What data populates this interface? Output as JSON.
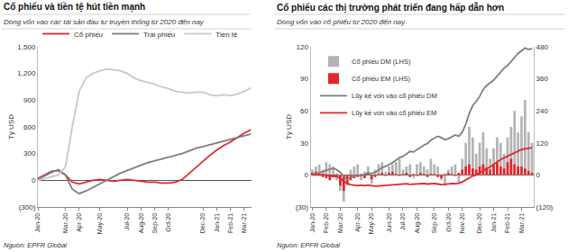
{
  "chart_data": [
    {
      "type": "line",
      "title": "Cổ phiếu và tiền tệ hút tiền mạnh",
      "subtitle": "Dòng vốn vào các tài sản đầu tư truyền thống từ 2020 đến nay",
      "y_label": "Tỷ USD",
      "annotations": [
        "Nguồn: EPFR Global"
      ],
      "categories": [
        "Jan-20",
        null,
        null,
        null,
        "Mar-20",
        null,
        "Apr-20",
        null,
        null,
        "May-20",
        null,
        null,
        null,
        "Jul-20",
        null,
        "Aug-20",
        null,
        "Sep-20",
        null,
        "Oct-20",
        null,
        null,
        null,
        null,
        "Dec-20",
        null,
        "Jan-21",
        null,
        "Feb-21",
        null,
        "Mar-21",
        null
      ],
      "series": [
        {
          "name": "Cổ phiếu",
          "color": "#e3262b",
          "values": [
            20,
            60,
            100,
            110,
            60,
            -20,
            -40,
            -20,
            0,
            10,
            0,
            -10,
            0,
            10,
            0,
            -10,
            -20,
            -20,
            -30,
            -30,
            -20,
            10,
            80,
            150,
            220,
            280,
            340,
            390,
            430,
            480,
            530,
            570
          ]
        },
        {
          "name": "Trái phiếu",
          "color": "#7f7f7f",
          "values": [
            10,
            50,
            90,
            120,
            60,
            -100,
            -150,
            -120,
            -80,
            -40,
            0,
            40,
            80,
            110,
            140,
            170,
            200,
            220,
            240,
            260,
            280,
            300,
            330,
            360,
            380,
            400,
            420,
            440,
            460,
            480,
            500,
            520
          ]
        },
        {
          "name": "Tiền tệ",
          "color": "#c8c8c8",
          "values": [
            0,
            20,
            40,
            60,
            150,
            600,
            1000,
            1150,
            1200,
            1230,
            1250,
            1240,
            1230,
            1200,
            1150,
            1120,
            1100,
            1080,
            1050,
            1030,
            1000,
            990,
            980,
            990,
            990,
            960,
            950,
            960,
            950,
            970,
            1000,
            1040
          ]
        }
      ],
      "ylim": [
        -300,
        1500
      ],
      "yticks": [
        {
          "value": -300,
          "label": "(300)"
        },
        0,
        300,
        600,
        900,
        {
          "value": 1200,
          "label": "1,200"
        },
        {
          "value": 1500,
          "label": "1,500"
        }
      ],
      "grid": false,
      "legend": "top"
    },
    {
      "type": "bar",
      "title": "Cổ phiếu các thị trường phát triển đang hấp dẫn hơn",
      "subtitle": "Dòng vốn vào cổ phiếu từ 2020 đến nay",
      "y_label": "Tỷ USD",
      "annotations": [
        "Nguồn: EPFR Global"
      ],
      "categories": [
        "Jan-20",
        null,
        null,
        null,
        "Feb-20",
        null,
        null,
        null,
        "Mar-20",
        null,
        null,
        null,
        null,
        "Apr-20",
        null,
        null,
        null,
        "May-20",
        null,
        null,
        null,
        null,
        "Jun-20",
        null,
        null,
        null,
        "Jul-20",
        null,
        null,
        null,
        "Aug-20",
        null,
        null,
        null,
        null,
        "Sep-20",
        null,
        null,
        null,
        "Oct-20",
        null,
        null,
        null,
        "Nov-20",
        null,
        null,
        null,
        null,
        "Dec-20",
        null,
        null,
        null,
        "Jan-21",
        null,
        null,
        null,
        "Feb-21",
        null,
        null,
        null,
        "Mar-21",
        null,
        null,
        null
      ],
      "series": [
        {
          "name": "Cổ phiếu DM (LHS)",
          "type": "bar",
          "color": "#b3b3b3",
          "values": [
            5,
            8,
            10,
            5,
            12,
            10,
            8,
            -5,
            -15,
            -25,
            -10,
            5,
            8,
            10,
            -5,
            3,
            8,
            -8,
            5,
            10,
            12,
            3,
            8,
            10,
            12,
            15,
            5,
            8,
            10,
            -3,
            10,
            12,
            8,
            5,
            15,
            10,
            8,
            -5,
            -10,
            5,
            8,
            10,
            -8,
            15,
            30,
            45,
            35,
            20,
            30,
            40,
            25,
            15,
            25,
            35,
            30,
            20,
            35,
            45,
            60,
            40,
            55,
            70,
            40,
            30
          ]
        },
        {
          "name": "Cổ phiếu EM (LHS)",
          "type": "bar",
          "color": "#e3262b",
          "values": [
            2,
            3,
            1,
            -2,
            -3,
            -5,
            -2,
            1,
            -10,
            -15,
            -8,
            -5,
            -3,
            -2,
            1,
            -3,
            2,
            -4,
            -2,
            1,
            2,
            -1,
            2,
            3,
            1,
            -1,
            1,
            2,
            -2,
            1,
            -1,
            2,
            1,
            -2,
            1,
            1,
            -2,
            -3,
            1,
            2,
            1,
            -1,
            2,
            5,
            8,
            10,
            6,
            5,
            8,
            10,
            7,
            5,
            10,
            12,
            8,
            6,
            12,
            15,
            10,
            8,
            8,
            6,
            4,
            2
          ]
        },
        {
          "name": "Lũy kế vốn vào cổ phiếu DM",
          "type": "line",
          "axis": "y2",
          "color": "#7f7f7f",
          "values": [
            2,
            5,
            10,
            12,
            18,
            22,
            25,
            20,
            10,
            -5,
            -15,
            -10,
            -5,
            0,
            -3,
            2,
            8,
            5,
            10,
            18,
            28,
            32,
            38,
            46,
            55,
            65,
            70,
            78,
            88,
            86,
            95,
            105,
            112,
            118,
            130,
            138,
            145,
            140,
            132,
            136,
            142,
            150,
            145,
            160,
            190,
            230,
            260,
            275,
            295,
            320,
            335,
            345,
            355,
            370,
            385,
            400,
            410,
            425,
            440,
            455,
            465,
            476,
            470,
            474
          ]
        },
        {
          "name": "Lũy kế vốn vào cổ phiếu EM",
          "type": "line",
          "axis": "y2",
          "color": "#e3262b",
          "values": [
            0,
            1,
            2,
            1,
            -1,
            -4,
            -6,
            -5,
            -12,
            -25,
            -32,
            -36,
            -38,
            -40,
            -38,
            -40,
            -38,
            -41,
            -42,
            -41,
            -40,
            -40,
            -38,
            -36,
            -35,
            -36,
            -35,
            -33,
            -35,
            -34,
            -35,
            -33,
            -32,
            -34,
            -33,
            -32,
            -34,
            -36,
            -35,
            -33,
            -32,
            -33,
            -31,
            -26,
            -18,
            -10,
            -4,
            0,
            8,
            18,
            24,
            30,
            40,
            50,
            58,
            64,
            70,
            78,
            84,
            90,
            95,
            98,
            100,
            102
          ]
        }
      ],
      "ylim": [
        -30,
        120
      ],
      "yticks": [
        {
          "value": -30,
          "label": "(30)"
        },
        0,
        30,
        60,
        90,
        120
      ],
      "y2lim": [
        -120,
        480
      ],
      "y2ticks": [
        {
          "value": -120,
          "label": "(120)"
        },
        0,
        120,
        240,
        360,
        480
      ],
      "grid": false,
      "legend": "upper left"
    }
  ]
}
